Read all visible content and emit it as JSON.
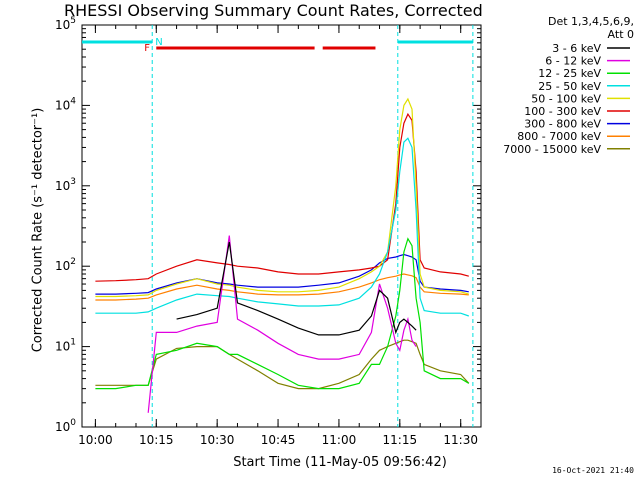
{
  "header": {
    "title": "RHESSI Observing Summary Count Rates, Corrected",
    "detectors_line1": "Det 1,3,4,5,6,9,",
    "detectors_line2": "Att 0"
  },
  "footer": {
    "timestamp": "16-Oct-2021 21:40"
  },
  "axes": {
    "xlabel": "Start Time (11-May-05 09:56:42)",
    "ylabel": "Corrected Count Rate (s⁻¹ detector⁻¹)"
  },
  "chart_data": {
    "type": "line",
    "title": "RHESSI Observing Summary Count Rates, Corrected",
    "xlabel": "Start Time (11-May-05 09:56:42)",
    "ylabel": "Corrected Count Rate (s^-1 detector^-1)",
    "yscale": "log",
    "xlim": [
      "09:56:42",
      "11:35:00"
    ],
    "ylim": [
      1,
      100000
    ],
    "x_ticks": [
      "10:00",
      "10:15",
      "10:30",
      "10:45",
      "11:00",
      "11:15",
      "11:30"
    ],
    "y_ticks": [
      "10^0",
      "10^1",
      "10^2",
      "10^3",
      "10^4",
      "10^5"
    ],
    "x": [
      "10:00",
      "10:05",
      "10:10",
      "10:13",
      "10:15",
      "10:20",
      "10:25",
      "10:30",
      "10:33",
      "10:35",
      "10:40",
      "10:45",
      "10:50",
      "10:55",
      "11:00",
      "11:05",
      "11:08",
      "11:10",
      "11:12",
      "11:14",
      "11:15",
      "11:16",
      "11:17",
      "11:18",
      "11:19",
      "11:20",
      "11:21",
      "11:25",
      "11:30",
      "11:32"
    ],
    "series": [
      {
        "name": "3 - 6 keV",
        "color": "#000000",
        "values": [
          null,
          null,
          null,
          null,
          null,
          22,
          25,
          30,
          200,
          35,
          28,
          22,
          17,
          14,
          14,
          16,
          24,
          50,
          40,
          15,
          20,
          22,
          20,
          18,
          16,
          null,
          null,
          null,
          null,
          null
        ]
      },
      {
        "name": "6 - 12 keV",
        "color": "#e000e0",
        "values": [
          null,
          null,
          null,
          1.5,
          15,
          15,
          18,
          20,
          240,
          22,
          16,
          11,
          8,
          7,
          7,
          8,
          15,
          60,
          30,
          11,
          9,
          16,
          22,
          12,
          10,
          null,
          null,
          null,
          null,
          null
        ]
      },
      {
        "name": "12 - 25 keV",
        "color": "#00e000",
        "values": [
          3,
          3,
          3.3,
          3.3,
          8,
          9,
          11,
          10,
          8,
          8,
          6,
          4.5,
          3.3,
          3,
          3,
          3.5,
          6,
          6,
          10,
          24,
          50,
          150,
          220,
          180,
          40,
          20,
          5,
          4,
          4,
          3.5
        ]
      },
      {
        "name": "25 - 50 keV",
        "color": "#00e0e0",
        "values": [
          26,
          26,
          26,
          27,
          30,
          38,
          45,
          43,
          42,
          40,
          36,
          34,
          32,
          32,
          33,
          40,
          55,
          80,
          150,
          500,
          1500,
          3500,
          3900,
          3000,
          500,
          40,
          28,
          26,
          26,
          24
        ]
      },
      {
        "name": "50 - 100 keV",
        "color": "#e0e000",
        "values": [
          42,
          42,
          43,
          44,
          50,
          60,
          70,
          60,
          58,
          55,
          50,
          48,
          48,
          50,
          55,
          70,
          85,
          100,
          150,
          1000,
          5000,
          10000,
          12000,
          9000,
          1000,
          80,
          55,
          50,
          48,
          45
        ]
      },
      {
        "name": "100 - 300 keV",
        "color": "#e00000",
        "values": [
          65,
          66,
          68,
          70,
          80,
          100,
          120,
          110,
          105,
          100,
          95,
          85,
          80,
          80,
          85,
          90,
          95,
          100,
          120,
          600,
          3000,
          6000,
          7800,
          6500,
          1500,
          120,
          95,
          85,
          80,
          75
        ]
      },
      {
        "name": "300 - 800 keV",
        "color": "#0000e0",
        "values": [
          45,
          45,
          46,
          47,
          52,
          62,
          70,
          62,
          60,
          58,
          55,
          55,
          55,
          58,
          62,
          75,
          90,
          110,
          125,
          130,
          135,
          140,
          135,
          130,
          120,
          65,
          55,
          52,
          50,
          48
        ]
      },
      {
        "name": "800 - 7000 keV",
        "color": "#ff8000",
        "values": [
          38,
          38,
          39,
          40,
          44,
          52,
          58,
          52,
          50,
          48,
          45,
          44,
          44,
          45,
          48,
          55,
          62,
          68,
          72,
          75,
          78,
          80,
          78,
          76,
          72,
          55,
          48,
          46,
          45,
          44
        ]
      },
      {
        "name": "7000 - 15000 keV",
        "color": "#808000",
        "values": [
          3.3,
          3.3,
          3.3,
          3.3,
          7,
          9.5,
          10,
          10,
          8,
          7,
          5,
          3.5,
          3,
          3,
          3.5,
          4.5,
          7,
          9,
          10,
          11,
          11.5,
          12,
          12,
          11.5,
          11,
          8,
          6,
          5,
          4.5,
          3.5
        ]
      }
    ],
    "flags": {
      "night_label": "N",
      "flare_label": "F",
      "night_color": "#00e0e0",
      "flare_color": "#e00000",
      "night_bars": [
        [
          "09:56:42",
          "10:14:00"
        ],
        [
          "11:14:30",
          "11:33:00"
        ]
      ],
      "flare_bars": [
        [
          "10:15:00",
          "10:54:00"
        ],
        [
          "10:56:00",
          "11:09:00"
        ]
      ],
      "night_boundaries": [
        "10:14:00",
        "11:14:30",
        "11:33:00"
      ]
    }
  }
}
